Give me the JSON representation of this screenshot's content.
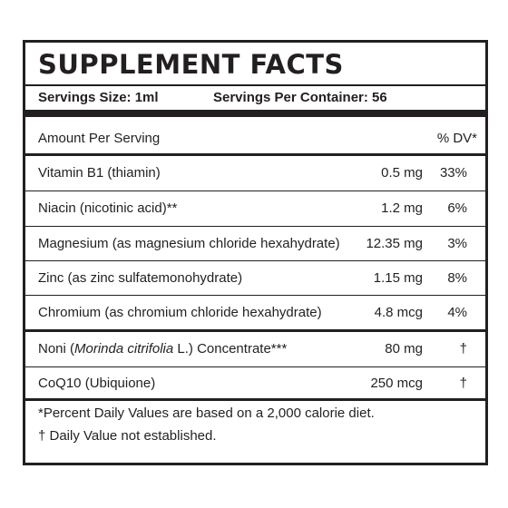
{
  "title": "SUPPLEMENT FACTS",
  "serving": {
    "size": "Servings Size:  1ml",
    "per_container": "Servings Per Container: 56"
  },
  "header": {
    "amount_label": "Amount Per Serving",
    "dv_label": "% DV*"
  },
  "nutrients": [
    {
      "name": "Vitamin B1 (thiamin)",
      "amount": "0.5 mg",
      "dv": "33%"
    },
    {
      "name": "Niacin (nicotinic acid)**",
      "amount": "1.2 mg",
      "dv": "6%"
    },
    {
      "name": "Magnesium (as magnesium chloride hexahydrate)",
      "amount": "12.35 mg",
      "dv": "3%"
    },
    {
      "name": "Zinc (as zinc sulfatemonohydrate)",
      "amount": "1.15 mg",
      "dv": "8%"
    },
    {
      "name": "Chromium (as chromium chloride hexahydrate)",
      "amount": "4.8 mcg",
      "dv": "4%"
    }
  ],
  "other": [
    {
      "name_prefix": "Noni (",
      "name_italic": "Morinda citrifolia",
      "name_suffix": " L.) Concentrate***",
      "amount": "80 mg",
      "dv": "†"
    },
    {
      "name": "CoQ10 (Ubiquione)",
      "amount": "250 mcg",
      "dv": "†"
    }
  ],
  "footnotes": {
    "daily_values": "*Percent Daily Values are based on a 2,000 calorie diet.",
    "not_established": "† Daily Value not established."
  }
}
